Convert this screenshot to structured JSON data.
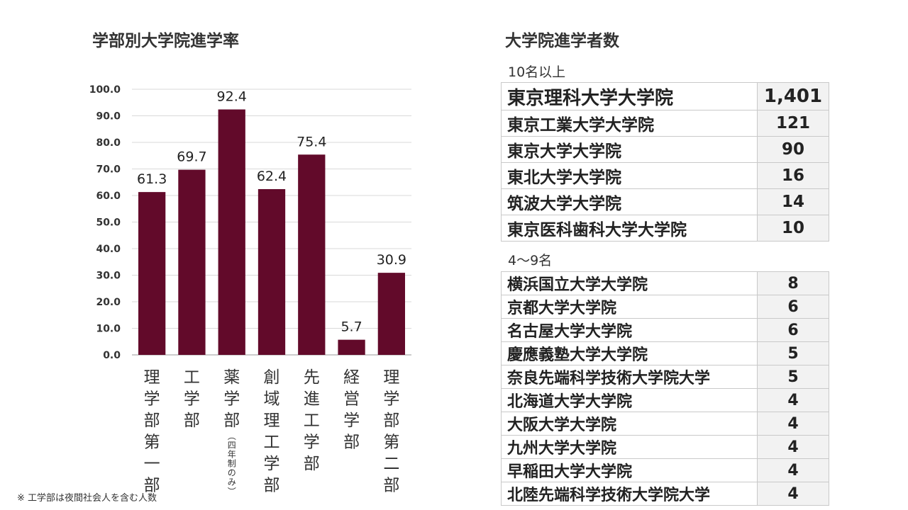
{
  "chart_data": {
    "type": "bar",
    "title": "学部別大学院進学率",
    "categories": [
      "理学部第一部",
      "工学部",
      "薬学部",
      "創域理工学部",
      "先進工学部",
      "経営学部",
      "理学部第二部"
    ],
    "category_notes": [
      "",
      "",
      "（四年制のみ）",
      "",
      "",
      "",
      ""
    ],
    "values": [
      61.3,
      69.7,
      92.4,
      62.4,
      75.4,
      5.7,
      30.9
    ],
    "ylim": [
      0,
      100
    ],
    "yticks": [
      "0.0",
      "10.0",
      "20.0",
      "30.0",
      "40.0",
      "50.0",
      "60.0",
      "70.0",
      "80.0",
      "90.0",
      "100.0"
    ],
    "xlabel": "",
    "ylabel": "",
    "grid": true,
    "bar_color": "#620a2a"
  },
  "footnote": "※ 工学部は夜間社会人を含む人数",
  "table": {
    "title": "大学院進学者数",
    "groups": [
      {
        "label": "10名以上",
        "rows": [
          {
            "name": "東京理科大学大学院",
            "count": "1,401"
          },
          {
            "name": "東京工業大学大学院",
            "count": "121"
          },
          {
            "name": "東京大学大学院",
            "count": "90"
          },
          {
            "name": "東北大学大学院",
            "count": "16"
          },
          {
            "name": "筑波大学大学院",
            "count": "14"
          },
          {
            "name": "東京医科歯科大学大学院",
            "count": "10"
          }
        ]
      },
      {
        "label": "4〜9名",
        "rows": [
          {
            "name": "横浜国立大学大学院",
            "count": "8"
          },
          {
            "name": "京都大学大学院",
            "count": "6"
          },
          {
            "name": "名古屋大学大学院",
            "count": "6"
          },
          {
            "name": "慶應義塾大学大学院",
            "count": "5"
          },
          {
            "name": "奈良先端科学技術大学院大学",
            "count": "5"
          },
          {
            "name": "北海道大学大学院",
            "count": "4"
          },
          {
            "name": "大阪大学大学院",
            "count": "4"
          },
          {
            "name": "九州大学大学院",
            "count": "4"
          },
          {
            "name": "早稲田大学大学院",
            "count": "4"
          },
          {
            "name": "北陸先端科学技術大学院大学",
            "count": "4"
          }
        ]
      }
    ]
  }
}
